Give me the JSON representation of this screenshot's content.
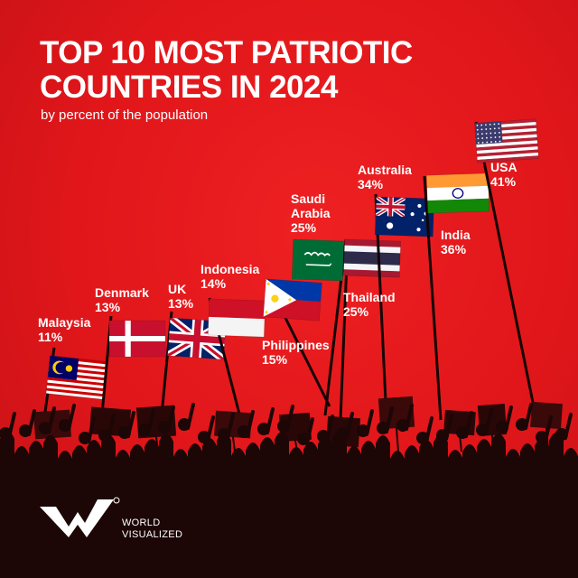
{
  "title_line1": "TOP 10 MOST PATRIOTIC",
  "title_line2": "COUNTRIES IN 2024",
  "subtitle": "by percent of the population",
  "brand_line1": "WORLD",
  "brand_line2": "VISUALIZED",
  "logo_icon": "world-visualized-logo",
  "colors": {
    "background": "#e8181a",
    "text": "#ffffff",
    "crowd": "#1c0606"
  },
  "chart_data": {
    "type": "bar",
    "title": "TOP 10 MOST PATRIOTIC COUNTRIES IN 2024",
    "subtitle": "by percent of the population",
    "unit": "%",
    "categories": [
      "Malaysia",
      "Denmark",
      "UK",
      "Indonesia",
      "Philippines",
      "Saudi Arabia",
      "Thailand",
      "Australia",
      "India",
      "USA"
    ],
    "values": [
      11,
      13,
      13,
      14,
      15,
      25,
      25,
      34,
      36,
      41
    ],
    "value_labels": [
      "11%",
      "13%",
      "13%",
      "14%",
      "15%",
      "25%",
      "25%",
      "34%",
      "36%",
      "41%"
    ],
    "category_labels": [
      [
        "Malaysia"
      ],
      [
        "Denmark"
      ],
      [
        "UK"
      ],
      [
        "Indonesia"
      ],
      [
        "Philippines"
      ],
      [
        "Saudi",
        "Arabia"
      ],
      [
        "Thailand"
      ],
      [
        "Australia"
      ],
      [
        "India"
      ],
      [
        "USA"
      ]
    ],
    "label_side": [
      "above",
      "above",
      "above",
      "above",
      "below",
      "above",
      "below",
      "above",
      "below",
      "above"
    ],
    "marks": "flags on poles; pole height proportional to value",
    "grid": false,
    "legend": "none"
  }
}
